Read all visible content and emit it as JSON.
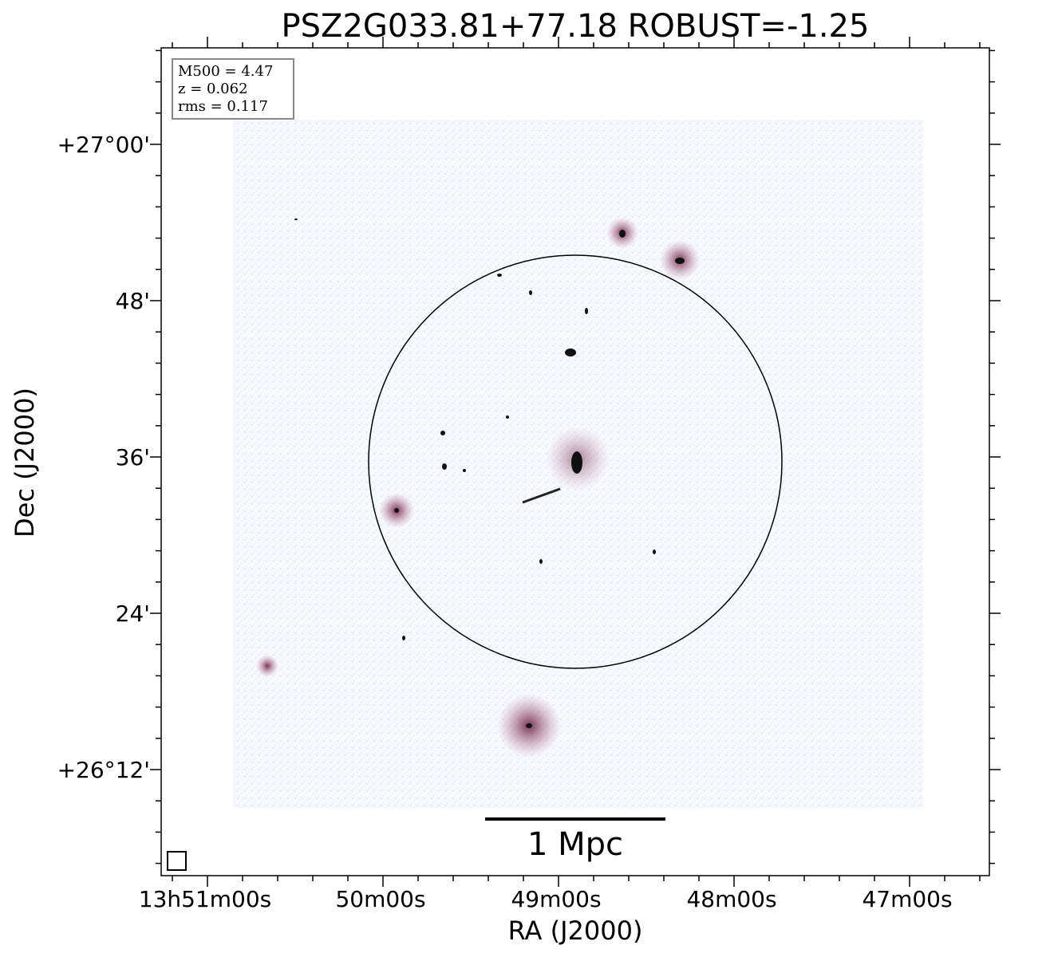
{
  "title": "PSZ2G033.81+77.18 ROBUST=-1.25",
  "x_axis": {
    "label": "RA (J2000)",
    "ticks": [
      "13h51m00s",
      "50m00s",
      "49m00s",
      "48m00s",
      "47m00s"
    ]
  },
  "y_axis": {
    "label": "Dec (J2000)",
    "ticks": [
      "+27°00'",
      "48'",
      "36'",
      "24'",
      "+26°12'"
    ]
  },
  "info_box": [
    "M500 = 4.47",
    "z = 0.062",
    "rms = 0.117"
  ],
  "scale_bar": "1 Mpc"
}
